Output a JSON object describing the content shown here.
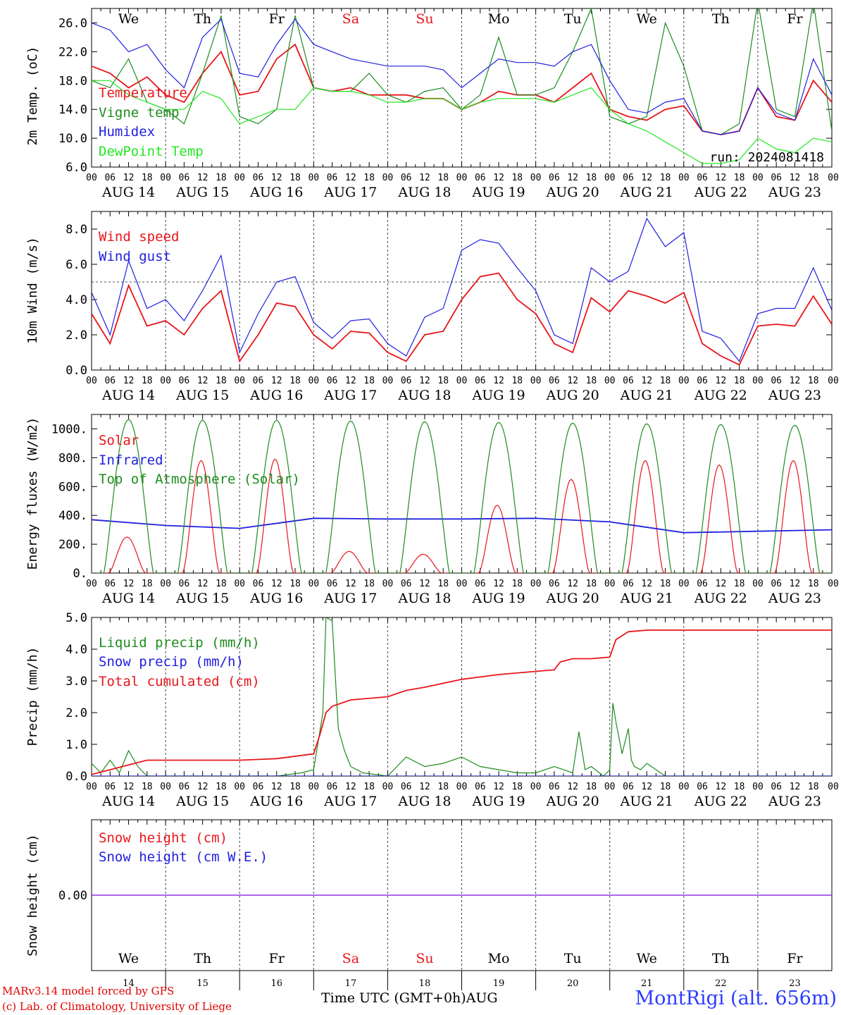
{
  "meta": {
    "run_label": "run: 2024081418",
    "footer_line1": "MARv3.14 model forced by GFS",
    "footer_line2": "(c) Lab. of Climatology, University of Liege",
    "station": "MontRigi (alt. 656m)",
    "time_axis_title": "Time UTC (GMT+0h)",
    "month_label": "AUG"
  },
  "colors": {
    "red": "#e8161b",
    "green": "#1e8c1e",
    "blue": "#2020e0",
    "lightgreen": "#22e822",
    "purple": "#8a2be2",
    "weekend": "#e8161b"
  },
  "days": {
    "weekdays": [
      "We",
      "Th",
      "Fr",
      "Sa",
      "Su",
      "Mo",
      "Tu",
      "We",
      "Th",
      "Fr"
    ],
    "weekend_flags": [
      false,
      false,
      false,
      true,
      true,
      false,
      false,
      false,
      false,
      false
    ],
    "dates": [
      "AUG 14",
      "AUG 15",
      "AUG 16",
      "AUG 17",
      "AUG 18",
      "AUG 19",
      "AUG 20",
      "AUG 21",
      "AUG 22",
      "AUG 23"
    ],
    "day_numbers": [
      "14",
      "15",
      "16",
      "17",
      "18",
      "19",
      "20",
      "21",
      "22",
      "23"
    ],
    "hour_ticks": [
      "00",
      "06",
      "12",
      "18"
    ],
    "end_tick": "00"
  },
  "chart_data": [
    {
      "id": "temp",
      "type": "line",
      "ylabel": "2m Temp. (oC)",
      "ylim": [
        6,
        28
      ],
      "yticks": [
        "6.0",
        "10.0",
        "14.0",
        "18.0",
        "22.0",
        "26.0"
      ],
      "x_unit": "hours since 00 UTC AUG 14",
      "series": [
        {
          "name": "Temperature",
          "color": "red",
          "x": [
            0,
            6,
            12,
            18,
            24,
            30,
            36,
            42,
            48,
            54,
            60,
            66,
            72,
            78,
            84,
            90,
            96,
            102,
            108,
            114,
            120,
            126,
            132,
            138,
            144,
            150,
            156,
            162,
            168,
            174,
            180,
            186,
            192,
            198,
            204,
            210,
            216,
            222,
            228,
            234,
            240
          ],
          "y": [
            20,
            19,
            17,
            18.5,
            16,
            15,
            19,
            22,
            16,
            16.5,
            21,
            23,
            17,
            16.5,
            17,
            16,
            16,
            16,
            15.5,
            15.5,
            14,
            15,
            16.5,
            16,
            16,
            15,
            17,
            19,
            14,
            13,
            12.5,
            14,
            14.5,
            11,
            10.5,
            11,
            17,
            13,
            12.5,
            18,
            15
          ]
        },
        {
          "name": "Vigne temp",
          "color": "green",
          "x": [
            0,
            6,
            12,
            18,
            24,
            30,
            36,
            42,
            48,
            54,
            60,
            66,
            72,
            78,
            84,
            90,
            96,
            102,
            108,
            114,
            120,
            126,
            132,
            138,
            144,
            150,
            156,
            162,
            168,
            174,
            180,
            186,
            192,
            198,
            204,
            210,
            216,
            222,
            228,
            234,
            240
          ],
          "y": [
            18,
            17,
            21,
            15,
            14,
            12,
            19,
            27,
            13,
            12,
            14,
            27,
            17,
            16.5,
            16.5,
            19,
            16,
            15,
            16.5,
            17,
            14,
            16,
            24,
            16,
            16,
            17,
            22,
            28,
            13,
            12,
            13,
            26,
            20,
            11,
            10.5,
            12,
            29,
            14,
            13,
            29,
            11
          ]
        },
        {
          "name": "Humidex",
          "color": "blue",
          "x": [
            0,
            6,
            12,
            18,
            24,
            30,
            36,
            42,
            48,
            54,
            60,
            66,
            72,
            78,
            84,
            90,
            96,
            102,
            108,
            114,
            120,
            126,
            132,
            138,
            144,
            150,
            156,
            162,
            168,
            174,
            180,
            186,
            192,
            198,
            204,
            210,
            216,
            222,
            228,
            234,
            240
          ],
          "y": [
            26,
            25,
            22,
            23,
            19.5,
            17,
            24,
            26.5,
            19,
            18.5,
            23,
            26.5,
            23,
            22,
            21,
            20.5,
            20,
            20,
            20,
            19.5,
            17,
            19,
            21,
            20.5,
            20.5,
            20,
            22,
            23,
            18,
            14,
            13.5,
            15,
            15.5,
            11,
            10.5,
            11,
            17,
            13.5,
            12.5,
            21,
            16
          ]
        },
        {
          "name": "DewPoint Temp",
          "color": "lightgreen",
          "x": [
            0,
            6,
            12,
            18,
            24,
            30,
            36,
            42,
            48,
            54,
            60,
            66,
            72,
            78,
            84,
            90,
            96,
            102,
            108,
            114,
            120,
            126,
            132,
            138,
            144,
            150,
            156,
            162,
            168,
            174,
            180,
            186,
            192,
            198,
            204,
            210,
            216,
            222,
            228,
            234,
            240
          ],
          "y": [
            18,
            18,
            16,
            15,
            14,
            14,
            16.5,
            15.5,
            12,
            13,
            14,
            14,
            17,
            16.5,
            16.5,
            16,
            15,
            15,
            15.5,
            15.5,
            14,
            15,
            15.5,
            15.5,
            15.5,
            15,
            16,
            17,
            14,
            12,
            11,
            9.5,
            8,
            6.5,
            6.5,
            7,
            10,
            8.5,
            8,
            10,
            9.5
          ]
        }
      ]
    },
    {
      "id": "wind",
      "type": "line",
      "ylabel": "10m Wind (m/s)",
      "ylim": [
        0,
        9
      ],
      "yticks": [
        "0.0",
        "2.0",
        "4.0",
        "6.0",
        "8.0"
      ],
      "ref_line": 5,
      "x_unit": "hours since 00 UTC AUG 14",
      "series": [
        {
          "name": "Wind speed",
          "color": "red",
          "x": [
            0,
            6,
            12,
            18,
            24,
            30,
            36,
            42,
            48,
            54,
            60,
            66,
            72,
            78,
            84,
            90,
            96,
            102,
            108,
            114,
            120,
            126,
            132,
            138,
            144,
            150,
            156,
            162,
            168,
            174,
            180,
            186,
            192,
            198,
            204,
            210,
            216,
            222,
            228,
            234,
            240
          ],
          "y": [
            3.2,
            1.5,
            4.8,
            2.5,
            2.8,
            2.0,
            3.5,
            4.5,
            0.5,
            2.0,
            3.8,
            3.6,
            2.0,
            1.2,
            2.2,
            2.1,
            1.0,
            0.5,
            2.0,
            2.2,
            4.0,
            5.3,
            5.5,
            4.0,
            3.2,
            1.5,
            1.0,
            4.1,
            3.3,
            4.5,
            4.2,
            3.8,
            4.4,
            1.5,
            0.8,
            0.3,
            2.5,
            2.6,
            2.5,
            4.2,
            2.6
          ]
        },
        {
          "name": "Wind gust",
          "color": "blue",
          "x": [
            0,
            6,
            12,
            18,
            24,
            30,
            36,
            42,
            48,
            54,
            60,
            66,
            72,
            78,
            84,
            90,
            96,
            102,
            108,
            114,
            120,
            126,
            132,
            138,
            144,
            150,
            156,
            162,
            168,
            174,
            180,
            186,
            192,
            198,
            204,
            210,
            216,
            222,
            228,
            234,
            240
          ],
          "y": [
            4.4,
            2.0,
            6.2,
            3.5,
            4.0,
            2.8,
            4.5,
            6.5,
            1.0,
            3.2,
            5.0,
            5.3,
            2.7,
            1.8,
            2.8,
            2.9,
            1.5,
            0.8,
            3.0,
            3.5,
            6.8,
            7.4,
            7.2,
            5.8,
            4.5,
            2.0,
            1.5,
            5.8,
            5.0,
            5.6,
            8.6,
            7.0,
            7.8,
            2.2,
            1.8,
            0.5,
            3.2,
            3.5,
            3.5,
            5.8,
            3.4
          ]
        }
      ]
    },
    {
      "id": "energy",
      "type": "line",
      "ylabel": "Energy fluxes (W/m2)",
      "ylim": [
        0,
        1100
      ],
      "yticks": [
        "0.",
        "200.",
        "400.",
        "600.",
        "800.",
        "1000."
      ],
      "x_unit": "hours since 00 UTC AUG 14",
      "series": [
        {
          "name": "Solar",
          "color": "red",
          "day_peaks": [
            250,
            780,
            790,
            150,
            130,
            470,
            650,
            780,
            750,
            780
          ]
        },
        {
          "name": "Infrared",
          "color": "blue",
          "x": [
            0,
            24,
            48,
            72,
            96,
            120,
            144,
            168,
            192,
            216,
            240
          ],
          "y": [
            370,
            330,
            310,
            380,
            375,
            375,
            380,
            355,
            280,
            290,
            300
          ]
        },
        {
          "name": "Top of Atmosphere (Solar)",
          "color": "green",
          "day_peaks": [
            1065,
            1060,
            1060,
            1055,
            1050,
            1045,
            1040,
            1035,
            1030,
            1025
          ]
        }
      ]
    },
    {
      "id": "precip",
      "type": "line",
      "ylabel": "Precip (mm/h)",
      "ylim": [
        0,
        5
      ],
      "yticks": [
        "0.0",
        "1.0",
        "2.0",
        "3.0",
        "4.0",
        "5.0"
      ],
      "x_unit": "hours since 00 UTC AUG 14",
      "series": [
        {
          "name": "Liquid precip (mm/h)",
          "color": "green",
          "x": [
            0,
            3,
            6,
            9,
            12,
            15,
            18,
            24,
            60,
            68,
            72,
            75,
            76,
            78,
            80,
            82,
            84,
            88,
            96,
            102,
            108,
            114,
            120,
            126,
            132,
            138,
            144,
            150,
            156,
            158,
            160,
            162,
            166,
            168,
            169,
            170,
            172,
            174,
            175,
            176,
            178,
            180,
            186,
            240
          ],
          "y": [
            0.4,
            0.1,
            0.5,
            0.1,
            0.8,
            0.3,
            0,
            0,
            0,
            0.1,
            0.2,
            2.0,
            5.0,
            4.9,
            1.5,
            0.8,
            0.3,
            0.1,
            0,
            0.6,
            0.3,
            0.4,
            0.6,
            0.3,
            0.2,
            0.1,
            0.1,
            0.3,
            0.1,
            1.4,
            0.2,
            0.3,
            0,
            0.2,
            2.3,
            1.7,
            0.7,
            1.5,
            0.5,
            0.3,
            0.2,
            0.4,
            0,
            0
          ]
        },
        {
          "name": "Snow precip (mm/h)",
          "color": "blue",
          "x": [
            0,
            240
          ],
          "y": [
            0,
            0
          ]
        },
        {
          "name": "Total cumulated (cm)",
          "color": "red",
          "x": [
            0,
            6,
            12,
            18,
            24,
            48,
            60,
            72,
            74,
            76,
            78,
            84,
            96,
            102,
            108,
            120,
            132,
            144,
            150,
            152,
            156,
            162,
            168,
            170,
            174,
            180,
            186,
            240
          ],
          "y": [
            0.05,
            0.2,
            0.35,
            0.5,
            0.5,
            0.5,
            0.55,
            0.7,
            1.3,
            2.0,
            2.2,
            2.4,
            2.5,
            2.7,
            2.8,
            3.05,
            3.2,
            3.3,
            3.35,
            3.6,
            3.7,
            3.7,
            3.75,
            4.3,
            4.55,
            4.6,
            4.6,
            4.6
          ]
        }
      ]
    },
    {
      "id": "snow",
      "type": "line",
      "ylabel": "Snow height (cm)",
      "ylim": [
        -1,
        1
      ],
      "yticks": [
        "0.00"
      ],
      "x_unit": "hours since 00 UTC AUG 14",
      "series": [
        {
          "name": "Snow height (cm)",
          "color": "red",
          "x": [
            0,
            240
          ],
          "y": [
            0,
            0
          ]
        },
        {
          "name": "Snow height (cm W.E.)",
          "color": "blue",
          "x": [
            0,
            240
          ],
          "y": [
            0,
            0
          ]
        }
      ]
    }
  ]
}
